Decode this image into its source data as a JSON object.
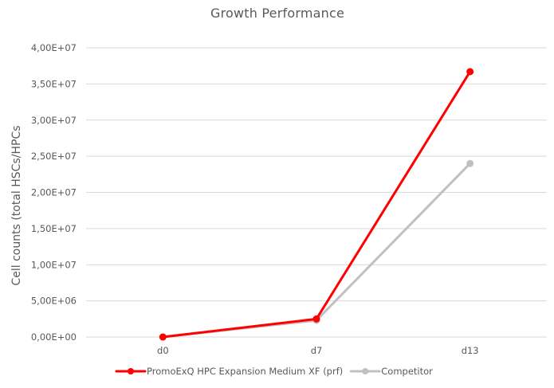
{
  "chart_data": {
    "type": "line",
    "title": "Growth Performance",
    "xlabel": "",
    "ylabel": "Cell counts (total HSCs/HPCs",
    "categories": [
      "d0",
      "d7",
      "d13"
    ],
    "ylim": [
      0,
      40000000
    ],
    "yticks": [
      0,
      5000000,
      10000000,
      15000000,
      20000000,
      25000000,
      30000000,
      35000000,
      40000000
    ],
    "ytick_labels": [
      "0,00E+00",
      "5,00E+06",
      "1,00E+07",
      "1,50E+07",
      "2,00E+07",
      "2,50E+07",
      "3,00E+07",
      "3,50E+07",
      "4,00E+07"
    ],
    "grid": true,
    "legend_position": "bottom",
    "series": [
      {
        "name": "PromoExQ HPC Expansion Medium XF (prf)",
        "values": [
          0,
          2500000,
          36700000
        ],
        "color": "#ff0000"
      },
      {
        "name": "Competitor",
        "values": [
          0,
          2300000,
          24000000
        ],
        "color": "#c0c0c0"
      }
    ]
  },
  "colors": {
    "gridline": "#d9d9d9",
    "axis": "#d9d9d9",
    "text": "#595959"
  }
}
